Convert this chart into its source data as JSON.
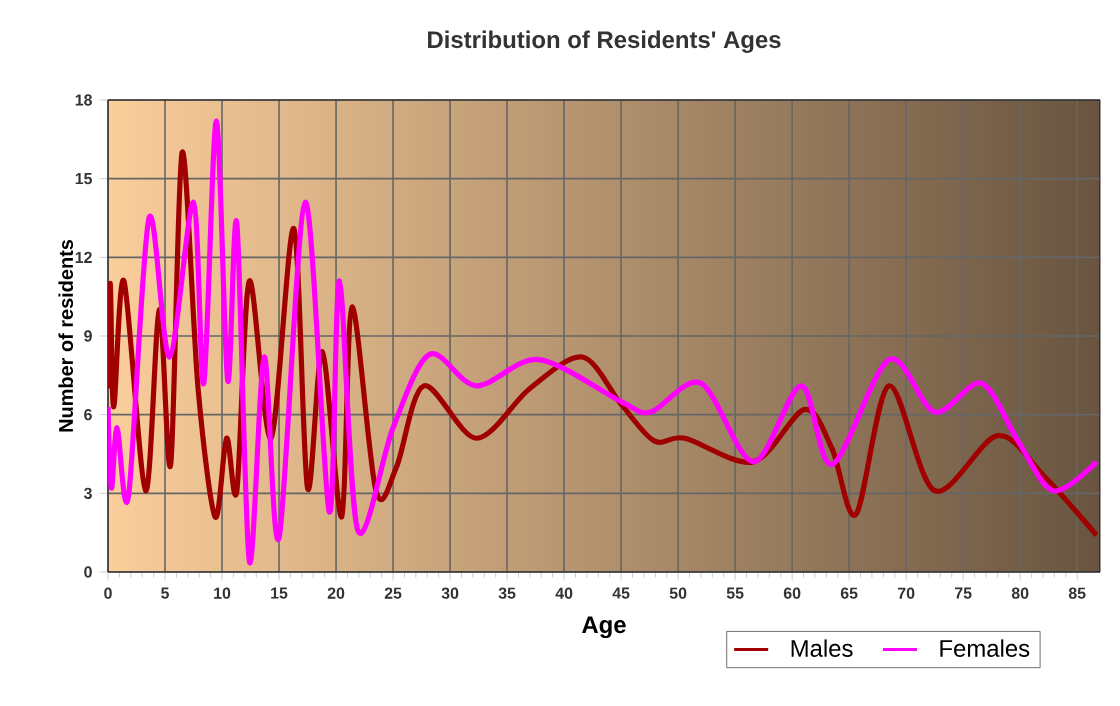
{
  "chart_data": {
    "type": "line",
    "title": "Distribution of Residents' Ages",
    "xlabel": "Age",
    "ylabel": "Number of residents",
    "xlim": [
      0,
      87
    ],
    "xticks": [
      0,
      5,
      10,
      15,
      20,
      25,
      30,
      35,
      40,
      45,
      50,
      55,
      60,
      65,
      70,
      75,
      80,
      85
    ],
    "ylim": [
      0,
      18
    ],
    "yticks": [
      0,
      3,
      6,
      9,
      12,
      15,
      18
    ],
    "grid": true,
    "legend": "bottom right",
    "series": [
      {
        "name": "Males",
        "color": "#a00000",
        "x": [
          0,
          0.2,
          0.5,
          1.4,
          3.3,
          4.5,
          5.5,
          6.5,
          7.9,
          9.4,
          10.4,
          11.3,
          12.4,
          14.3,
          16.3,
          17.5,
          18.8,
          20.5,
          21.4,
          23.5,
          25.3,
          27.7,
          32.3,
          37,
          41.6,
          45,
          47.9,
          50.6,
          56.6,
          61.1,
          63.5,
          65.6,
          68.5,
          72.5,
          78,
          82,
          86.7
        ],
        "values": [
          7,
          11,
          6.3,
          11.1,
          3.1,
          10,
          4.1,
          16,
          7,
          2.1,
          5.1,
          3.1,
          11.1,
          5.1,
          13.1,
          3.2,
          8.4,
          2.1,
          10.1,
          3.1,
          4,
          7.1,
          5.1,
          7,
          8.2,
          6.4,
          5,
          5.1,
          4.2,
          6.2,
          4.7,
          2.2,
          7.1,
          3.1,
          5.2,
          3.7,
          1.4
        ]
      },
      {
        "name": "Females",
        "color": "#ff00ff",
        "x": [
          0,
          0.3,
          0.8,
          1.8,
          3.6,
          5.4,
          7.5,
          8.4,
          9.5,
          10.5,
          11.3,
          12.4,
          13.7,
          15,
          17.3,
          19.4,
          20.3,
          21.9,
          25,
          28.2,
          32.3,
          37.8,
          45,
          47.6,
          52,
          56.6,
          60.8,
          63.5,
          68.5,
          72.5,
          76.6,
          79.8,
          82.9,
          86.7
        ],
        "values": [
          6.3,
          3.2,
          5.5,
          2.9,
          13.5,
          8.2,
          14.1,
          7.2,
          17.2,
          7.3,
          13.3,
          0.4,
          8.2,
          1.3,
          14.1,
          2.3,
          11.1,
          1.6,
          5.5,
          8.3,
          7.1,
          8.1,
          6.5,
          6.1,
          7.2,
          4.2,
          7.1,
          4.1,
          8.1,
          6.1,
          7.2,
          5,
          3.1,
          4.2
        ]
      }
    ]
  }
}
